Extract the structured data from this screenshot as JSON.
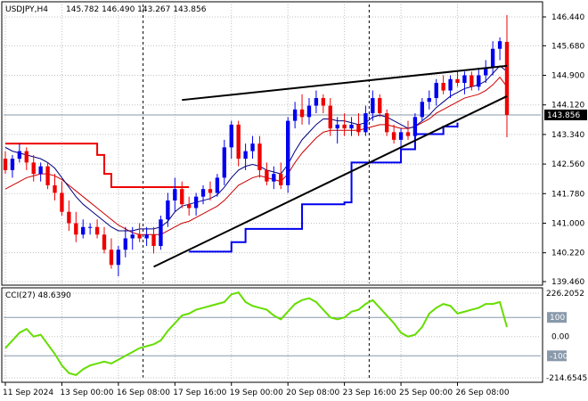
{
  "header": {
    "symbol": "USDJPY,H4",
    "ohlc": "145.782 146.490 143.267 143.856"
  },
  "indicator": {
    "label": "CCI(27) 48.6390"
  },
  "colors": {
    "bull": "#0000ee",
    "bear": "#ee0000",
    "ma_fast": "#00007f",
    "ma_slow": "#cc0000",
    "stop_red": "#ee0000",
    "stop_blue": "#0000ee",
    "cci": "#66dd00",
    "trendline": "#000000",
    "grid": "#c0c0c0"
  },
  "price_axis": {
    "ticks": [
      "146.440",
      "145.680",
      "144.900",
      "144.120",
      "143.340",
      "142.560",
      "141.780",
      "141.000",
      "140.220",
      "139.460"
    ],
    "current_price": "143.856"
  },
  "cci_axis": {
    "ticks": [
      "226.2052",
      "100",
      "0.00",
      "-100",
      "-214.6545"
    ]
  },
  "time_axis": {
    "labels": [
      "11 Sep 2024",
      "13 Sep 00:00",
      "16 Sep 08:00",
      "17 Sep 16:00",
      "19 Sep 00:00",
      "20 Sep 08:00",
      "23 Sep 16:00",
      "25 Sep 00:00",
      "26 Sep 08:00"
    ]
  },
  "chart_data": {
    "type": "candlestick",
    "symbol": "USDJPY",
    "timeframe": "H4",
    "ylim": [
      139.4,
      146.6
    ],
    "cci_ylim": [
      -214.6545,
      226.2052
    ],
    "candles": [
      [
        142.7,
        142.9,
        142.3,
        142.4
      ],
      [
        142.4,
        142.8,
        142.2,
        142.7
      ],
      [
        142.7,
        143.1,
        142.6,
        142.9
      ],
      [
        142.9,
        143.0,
        142.4,
        142.6
      ],
      [
        142.6,
        142.8,
        142.1,
        142.3
      ],
      [
        142.3,
        142.6,
        142.1,
        142.5
      ],
      [
        142.5,
        142.6,
        141.9,
        142.0
      ],
      [
        142.0,
        142.3,
        141.6,
        141.8
      ],
      [
        141.8,
        142.1,
        141.2,
        141.3
      ],
      [
        141.3,
        141.6,
        140.8,
        141.0
      ],
      [
        141.0,
        141.3,
        140.5,
        140.7
      ],
      [
        140.7,
        141.1,
        140.6,
        140.9
      ],
      [
        140.9,
        141.0,
        140.7,
        140.9
      ],
      [
        140.9,
        141.1,
        140.6,
        140.7
      ],
      [
        140.7,
        140.9,
        140.2,
        140.3
      ],
      [
        140.3,
        140.6,
        139.8,
        139.9
      ],
      [
        139.9,
        140.4,
        139.6,
        140.3
      ],
      [
        140.3,
        140.9,
        140.1,
        140.6
      ],
      [
        140.6,
        140.9,
        140.3,
        140.7
      ],
      [
        140.7,
        141.0,
        140.5,
        140.6
      ],
      [
        140.6,
        140.9,
        140.4,
        140.7
      ],
      [
        140.7,
        140.9,
        140.2,
        140.4
      ],
      [
        140.4,
        141.2,
        140.3,
        141.1
      ],
      [
        141.1,
        141.8,
        140.9,
        141.6
      ],
      [
        141.6,
        142.2,
        141.3,
        141.9
      ],
      [
        141.9,
        142.1,
        141.4,
        141.5
      ],
      [
        141.5,
        141.7,
        141.2,
        141.4
      ],
      [
        141.4,
        141.8,
        141.2,
        141.7
      ],
      [
        141.7,
        142.0,
        141.5,
        141.9
      ],
      [
        141.9,
        142.1,
        141.6,
        141.8
      ],
      [
        141.8,
        142.3,
        141.7,
        142.2
      ],
      [
        142.2,
        143.2,
        142.0,
        143.0
      ],
      [
        143.0,
        143.7,
        142.7,
        143.6
      ],
      [
        143.6,
        143.7,
        142.5,
        142.7
      ],
      [
        142.7,
        143.1,
        142.4,
        142.9
      ],
      [
        142.9,
        143.3,
        142.7,
        143.1
      ],
      [
        143.1,
        143.3,
        142.2,
        142.4
      ],
      [
        142.4,
        142.6,
        142.0,
        142.1
      ],
      [
        142.1,
        142.5,
        141.9,
        142.3
      ],
      [
        142.3,
        142.6,
        141.9,
        142.0
      ],
      [
        142.0,
        143.8,
        141.8,
        143.7
      ],
      [
        143.7,
        144.2,
        143.5,
        144.0
      ],
      [
        144.0,
        144.4,
        143.6,
        143.8
      ],
      [
        143.8,
        144.3,
        143.6,
        144.1
      ],
      [
        144.1,
        144.5,
        143.9,
        144.3
      ],
      [
        144.3,
        144.4,
        143.9,
        144.1
      ],
      [
        144.1,
        144.3,
        143.3,
        143.5
      ],
      [
        143.5,
        143.8,
        143.1,
        143.6
      ],
      [
        143.6,
        143.9,
        143.3,
        143.5
      ],
      [
        143.5,
        143.8,
        143.3,
        143.6
      ],
      [
        143.6,
        143.9,
        143.3,
        143.4
      ],
      [
        143.4,
        144.1,
        143.3,
        143.9
      ],
      [
        143.9,
        144.5,
        143.7,
        144.3
      ],
      [
        144.3,
        144.4,
        143.8,
        143.9
      ],
      [
        143.9,
        144.0,
        143.3,
        143.4
      ],
      [
        143.4,
        143.6,
        143.1,
        143.2
      ],
      [
        143.2,
        143.5,
        143.0,
        143.4
      ],
      [
        143.4,
        143.7,
        143.2,
        143.3
      ],
      [
        143.3,
        143.9,
        143.2,
        143.8
      ],
      [
        143.8,
        144.3,
        143.7,
        144.2
      ],
      [
        144.2,
        144.5,
        144.0,
        144.3
      ],
      [
        144.3,
        144.8,
        144.1,
        144.7
      ],
      [
        144.7,
        144.9,
        144.4,
        144.5
      ],
      [
        144.5,
        144.9,
        144.3,
        144.8
      ],
      [
        144.8,
        145.0,
        144.6,
        144.7
      ],
      [
        144.7,
        145.0,
        144.4,
        144.9
      ],
      [
        144.9,
        145.0,
        144.5,
        144.6
      ],
      [
        144.6,
        145.1,
        144.5,
        144.9
      ],
      [
        144.9,
        145.3,
        144.7,
        145.1
      ],
      [
        145.1,
        145.8,
        144.9,
        145.6
      ],
      [
        145.6,
        145.9,
        145.3,
        145.8
      ],
      [
        145.782,
        146.49,
        143.267,
        143.856
      ]
    ],
    "ma_fast": [
      143.0,
      142.9,
      142.85,
      142.8,
      142.75,
      142.7,
      142.6,
      142.45,
      142.2,
      141.95,
      141.7,
      141.5,
      141.35,
      141.2,
      141.05,
      140.9,
      140.8,
      140.8,
      140.8,
      140.85,
      140.85,
      140.85,
      140.9,
      141.05,
      141.3,
      141.45,
      141.5,
      141.55,
      141.6,
      141.65,
      141.75,
      141.95,
      142.2,
      142.4,
      142.5,
      142.55,
      142.5,
      142.4,
      142.35,
      142.3,
      142.55,
      142.9,
      143.2,
      143.4,
      143.6,
      143.75,
      143.75,
      143.7,
      143.7,
      143.65,
      143.6,
      143.65,
      143.8,
      143.85,
      143.8,
      143.7,
      143.6,
      143.5,
      143.55,
      143.7,
      143.85,
      144.05,
      144.2,
      144.35,
      144.45,
      144.55,
      144.6,
      144.65,
      144.75,
      144.95,
      145.15,
      145.0
    ],
    "ma_slow": [
      141.9,
      142.0,
      142.1,
      142.2,
      142.25,
      142.3,
      142.3,
      142.25,
      142.15,
      142.0,
      141.85,
      141.7,
      141.55,
      141.4,
      141.25,
      141.1,
      140.95,
      140.85,
      140.75,
      140.7,
      140.7,
      140.7,
      140.7,
      140.8,
      140.9,
      141.0,
      141.05,
      141.15,
      141.25,
      141.35,
      141.45,
      141.6,
      141.8,
      142.0,
      142.1,
      142.2,
      142.25,
      142.2,
      142.15,
      142.1,
      142.3,
      142.6,
      142.85,
      143.05,
      143.25,
      143.4,
      143.45,
      143.45,
      143.45,
      143.45,
      143.45,
      143.5,
      143.55,
      143.6,
      143.6,
      143.55,
      143.5,
      143.5,
      143.55,
      143.65,
      143.75,
      143.9,
      144.0,
      144.1,
      144.2,
      144.3,
      144.35,
      144.4,
      144.5,
      144.65,
      144.85,
      144.6
    ],
    "stop_line": [
      {
        "color": "red",
        "points": [
          [
            0,
            143.1
          ],
          [
            12,
            143.1
          ],
          [
            13,
            142.8
          ],
          [
            14,
            142.3
          ],
          [
            15,
            141.95
          ],
          [
            26,
            141.95
          ]
        ]
      },
      {
        "color": "blue",
        "points": [
          [
            26,
            140.25
          ],
          [
            31,
            140.25
          ],
          [
            32,
            140.5
          ],
          [
            34,
            140.85
          ],
          [
            41,
            140.85
          ],
          [
            42,
            141.5
          ],
          [
            48,
            141.55
          ],
          [
            49,
            142.6
          ],
          [
            55,
            142.6
          ],
          [
            56,
            142.95
          ],
          [
            57,
            142.95
          ],
          [
            58,
            143.35
          ],
          [
            61,
            143.35
          ],
          [
            62,
            143.55
          ],
          [
            64,
            143.65
          ]
        ]
      }
    ],
    "trendlines": [
      {
        "from": [
          25,
          144.25
        ],
        "to": [
          71,
          145.15
        ]
      },
      {
        "from": [
          21,
          139.85
        ],
        "to": [
          71,
          144.35
        ]
      }
    ],
    "cci": [
      -60,
      -20,
      20,
      40,
      0,
      10,
      -40,
      -90,
      -150,
      -190,
      -200,
      -170,
      -150,
      -140,
      -130,
      -140,
      -120,
      -100,
      -80,
      -60,
      -50,
      -40,
      -20,
      30,
      70,
      110,
      120,
      140,
      150,
      160,
      170,
      180,
      220,
      230,
      180,
      160,
      150,
      140,
      110,
      90,
      130,
      170,
      190,
      200,
      180,
      140,
      100,
      90,
      100,
      130,
      140,
      170,
      190,
      150,
      110,
      70,
      20,
      0,
      10,
      50,
      120,
      150,
      170,
      160,
      120,
      130,
      140,
      150,
      170,
      170,
      180,
      50
    ],
    "horizontal_line": 143.856
  }
}
